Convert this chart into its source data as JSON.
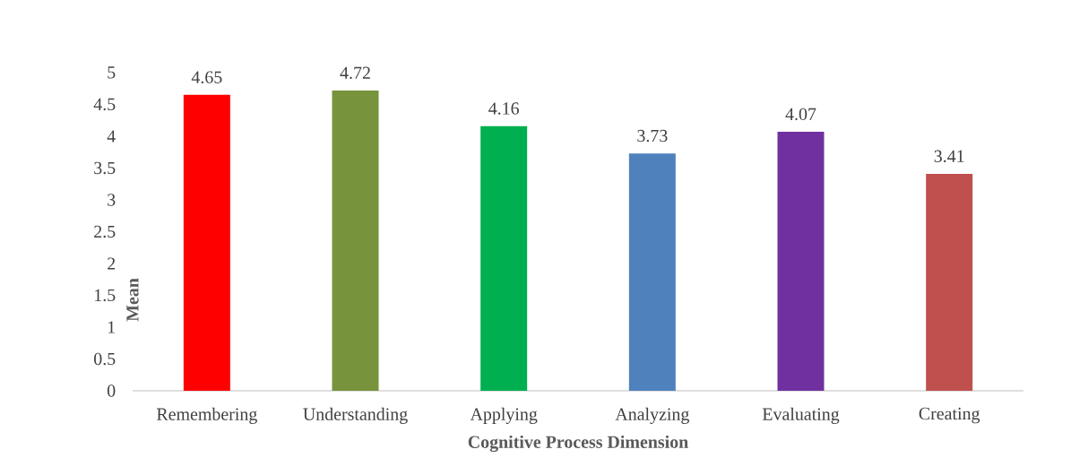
{
  "chart_data": {
    "type": "bar",
    "xlabel": "Cognitive Process Dimension",
    "ylabel": "Mean",
    "categories": [
      "Remembering",
      "Understanding",
      "Applying",
      "Analyzing",
      "Evaluating",
      "Creating"
    ],
    "values": [
      4.65,
      4.72,
      4.16,
      3.73,
      4.07,
      3.41
    ],
    "colors": [
      "#ff0000",
      "#77933c",
      "#00b050",
      "#4f81bd",
      "#7030a0",
      "#c0504d"
    ],
    "ylim": [
      0,
      5
    ],
    "yticks": [
      0,
      0.5,
      1,
      1.5,
      2,
      2.5,
      3,
      3.5,
      4,
      4.5,
      5
    ],
    "data_labels": true
  }
}
